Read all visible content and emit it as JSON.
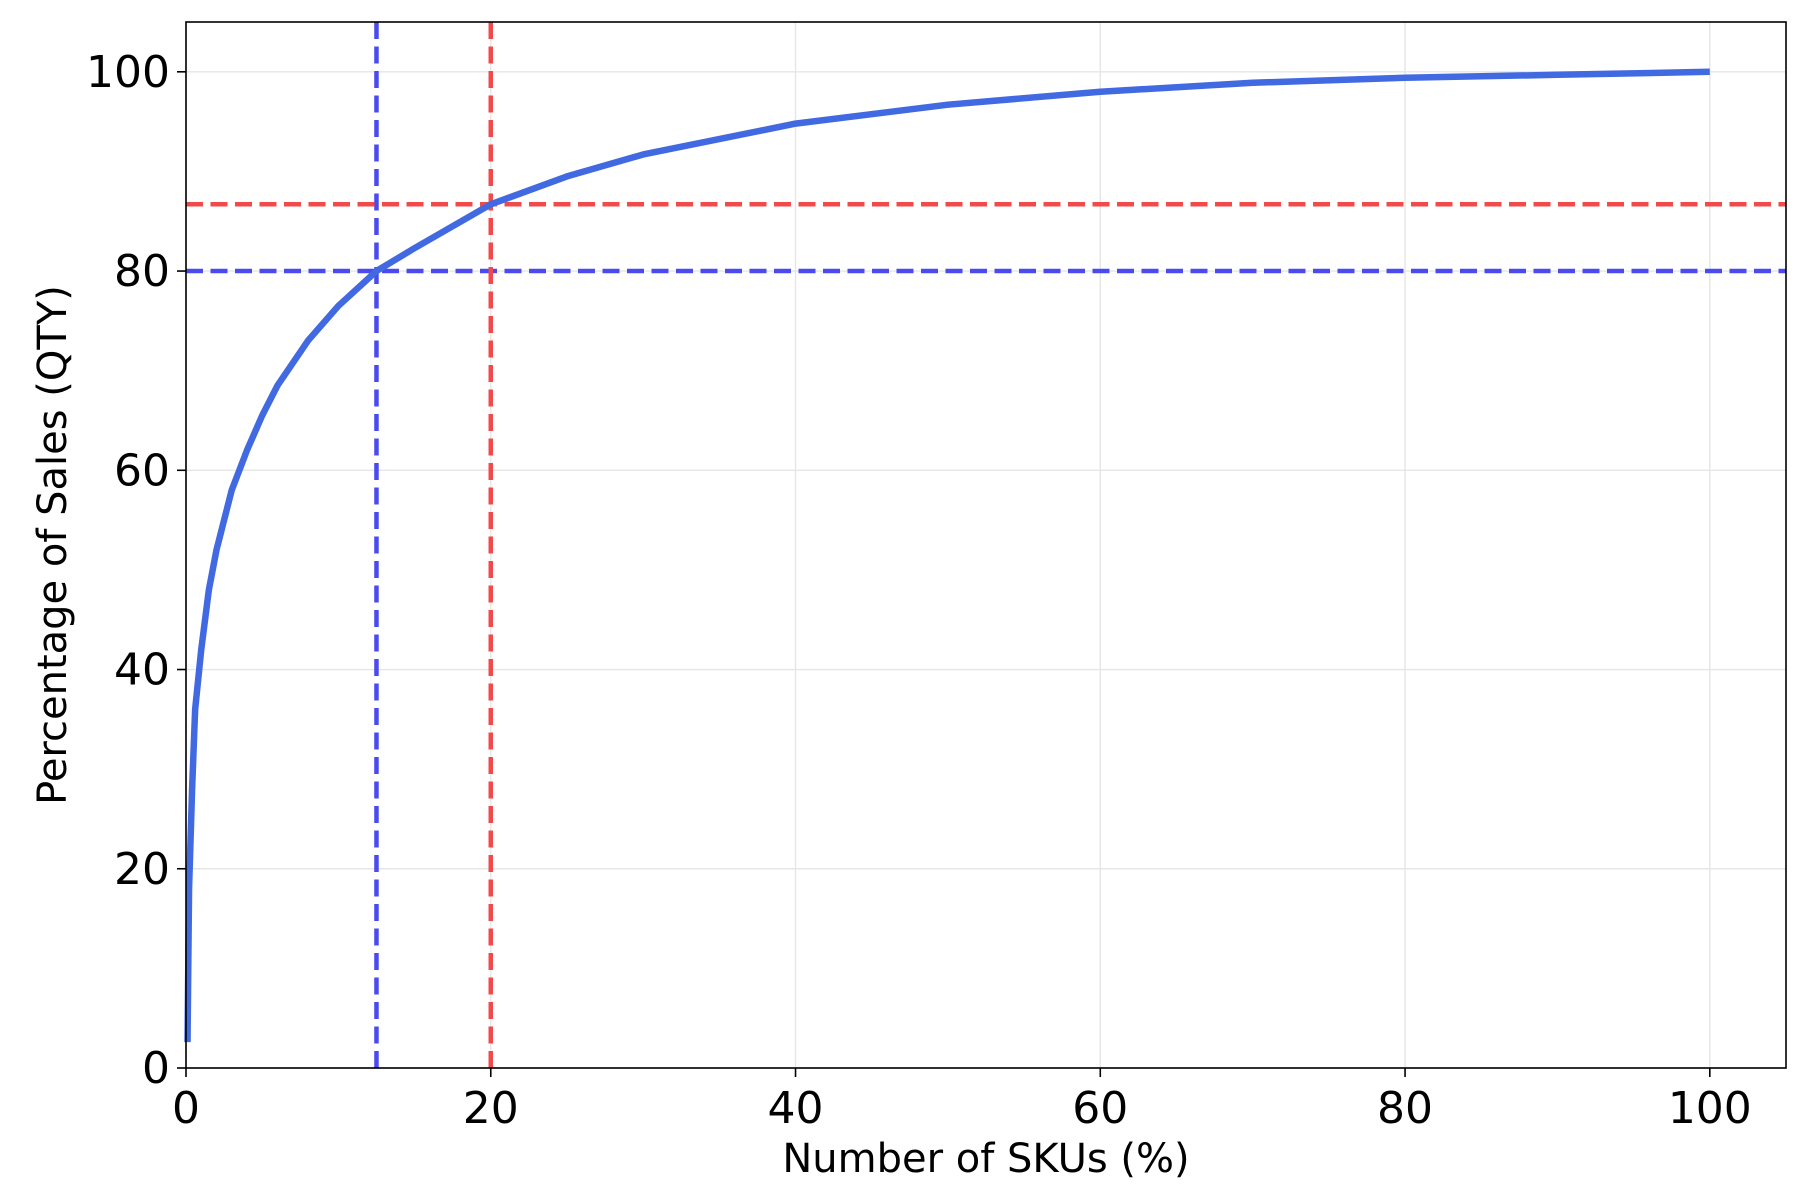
{
  "chart_data": {
    "type": "line",
    "title": "",
    "xlabel": "Number of SKUs (%)",
    "ylabel": "Percentage of Sales (QTY)",
    "xlim": [
      0,
      105
    ],
    "ylim": [
      0,
      105
    ],
    "xticks": [
      0,
      20,
      40,
      60,
      80,
      100
    ],
    "yticks": [
      0,
      20,
      40,
      60,
      80,
      100
    ],
    "grid": true,
    "series": [
      {
        "color": "#4169e1",
        "x": [
          0.1,
          0.2,
          0.4,
          0.6,
          1,
          1.5,
          2,
          3,
          4,
          5,
          6,
          8,
          10,
          12.5,
          15,
          20,
          25,
          30,
          40,
          50,
          60,
          70,
          80,
          90,
          100
        ],
        "y": [
          2.6,
          18,
          28,
          36,
          42,
          48,
          52,
          58,
          62,
          65.5,
          68.5,
          73,
          76.5,
          80,
          82.3,
          86.7,
          89.5,
          91.7,
          94.8,
          96.7,
          98,
          98.9,
          99.4,
          99.7,
          100
        ]
      }
    ],
    "reference_lines": [
      {
        "orientation": "vertical",
        "value": 12.5,
        "color": "#4a4af0"
      },
      {
        "orientation": "horizontal",
        "value": 80,
        "color": "#4a4af0"
      },
      {
        "orientation": "vertical",
        "value": 20,
        "color": "#f24a4a"
      },
      {
        "orientation": "horizontal",
        "value": 86.7,
        "color": "#f24a4a"
      }
    ]
  }
}
